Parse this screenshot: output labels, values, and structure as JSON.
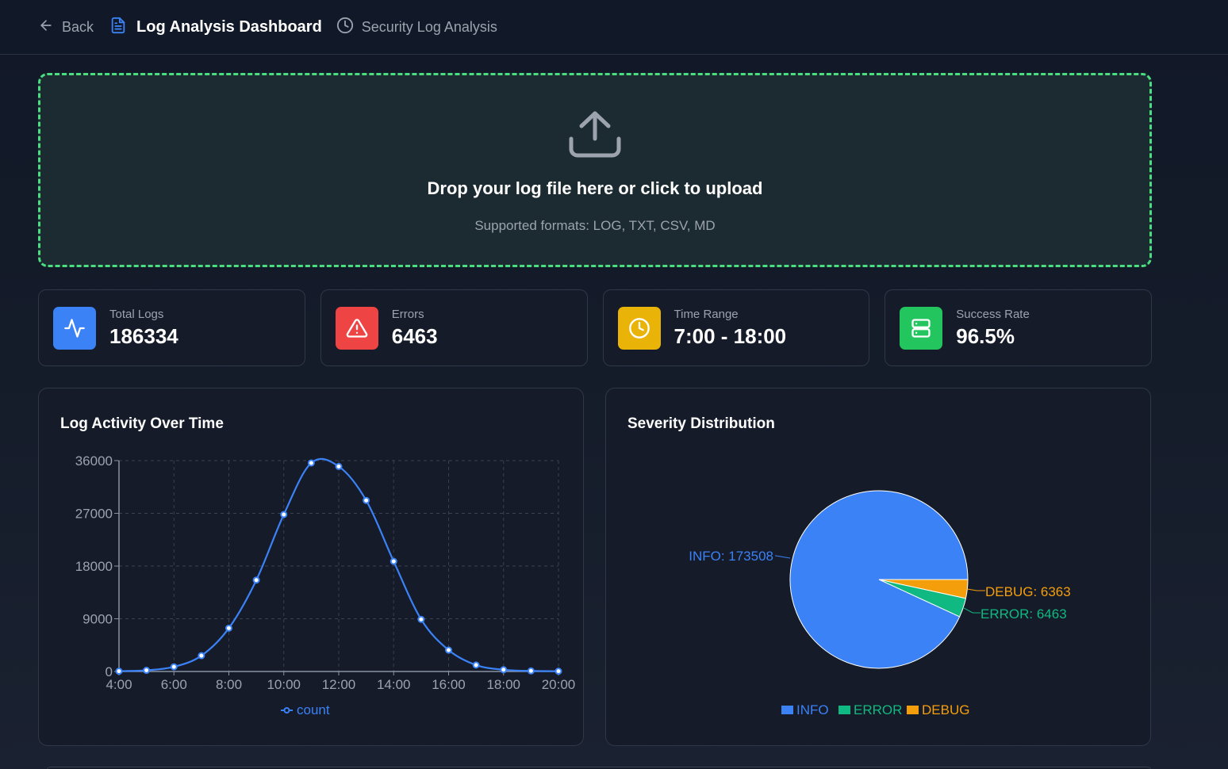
{
  "header": {
    "back_label": "Back",
    "title": "Log Analysis Dashboard",
    "subtitle": "Security Log Analysis"
  },
  "upload": {
    "title": "Drop your log file here or click to upload",
    "subtitle": "Supported formats: LOG, TXT, CSV, MD",
    "icon": "upload-icon"
  },
  "stats": [
    {
      "label": "Total Logs",
      "value": "186334",
      "icon": "activity-icon",
      "color": "#3b82f6"
    },
    {
      "label": "Errors",
      "value": "6463",
      "icon": "alert-triangle-icon",
      "color": "#ef4444"
    },
    {
      "label": "Time Range",
      "value": "7:00 - 18:00",
      "icon": "clock-icon",
      "color": "#eab308"
    },
    {
      "label": "Success Rate",
      "value": "96.5%",
      "icon": "server-icon",
      "color": "#22c55e"
    }
  ],
  "panels": {
    "activity_title": "Log Activity Over Time",
    "severity_title": "Severity Distribution"
  },
  "colors": {
    "accent": "#3b82f6",
    "info": "#3b82f6",
    "error": "#10b981",
    "debug": "#f59e0b",
    "dropzone_border": "#4ade80"
  },
  "chart_data": [
    {
      "type": "line",
      "title": "Log Activity Over Time",
      "xlabel": "",
      "ylabel": "",
      "x": [
        "4:00",
        "5:00",
        "6:00",
        "7:00",
        "8:00",
        "9:00",
        "10:00",
        "11:00",
        "12:00",
        "13:00",
        "14:00",
        "15:00",
        "16:00",
        "17:00",
        "18:00",
        "19:00",
        "20:00"
      ],
      "x_tick_labels": [
        "4:00",
        "6:00",
        "8:00",
        "10:00",
        "12:00",
        "14:00",
        "16:00",
        "18:00",
        "20:00"
      ],
      "series": [
        {
          "name": "count",
          "values": [
            50,
            200,
            800,
            2700,
            7400,
            15600,
            26800,
            35600,
            35000,
            29200,
            18800,
            8900,
            3650,
            1100,
            300,
            100,
            50
          ]
        }
      ],
      "y_ticks": [
        0,
        9000,
        18000,
        27000,
        36000
      ],
      "ylim": [
        0,
        36000
      ],
      "grid": true,
      "legend_position": "bottom",
      "smooth": true
    },
    {
      "type": "pie",
      "title": "Severity Distribution",
      "categories": [
        "INFO",
        "ERROR",
        "DEBUG"
      ],
      "values": [
        173508,
        6463,
        6363
      ],
      "labels": [
        "INFO: 173508",
        "ERROR: 6463",
        "DEBUG: 6363"
      ],
      "colors": [
        "#3b82f6",
        "#10b981",
        "#f59e0b"
      ],
      "legend_position": "bottom"
    }
  ]
}
